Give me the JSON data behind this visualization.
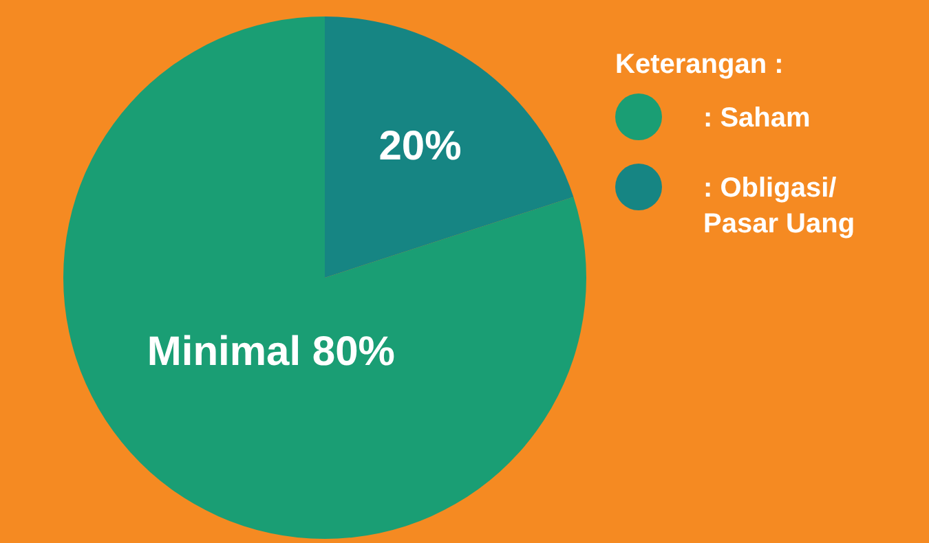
{
  "chart_data": {
    "type": "pie",
    "legend_title": "Keterangan :",
    "legend": "top right",
    "categories": [
      ": Saham",
      ": Obligasi/ Pasar Uang"
    ],
    "values": [
      80,
      20
    ],
    "colors": [
      "#1a9e74",
      "#168583"
    ],
    "value_labels": [
      "Minimal 80%",
      "20%"
    ]
  }
}
